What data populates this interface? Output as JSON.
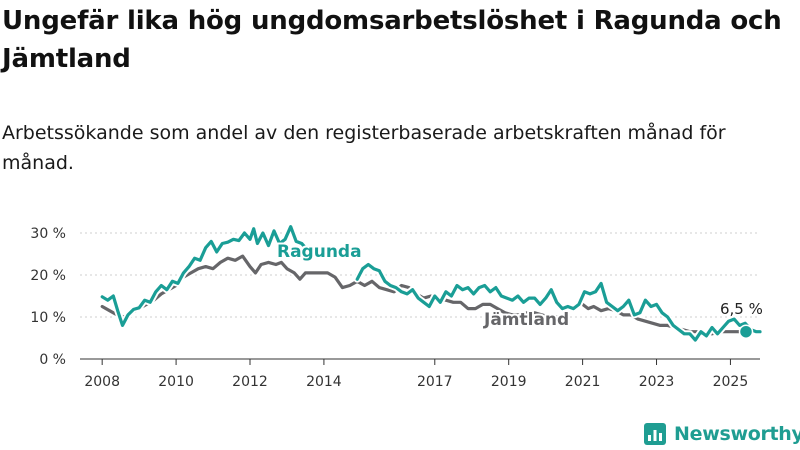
{
  "chart_data": {
    "type": "line",
    "title": "Ungefär lika hög ungdomsarbetslöshet i Ragunda och Jämtland",
    "subtitle": "Arbetssökande som andel av den registerbaserade arbetskraften månad för månad.",
    "xlabel": "",
    "ylabel": "",
    "ylim": [
      0,
      30
    ],
    "xlim": [
      2007.4,
      2025.8
    ],
    "y_ticks": [
      0,
      10,
      20,
      30
    ],
    "y_tick_labels": [
      "0 %",
      "10 %",
      "20 %",
      "30 %"
    ],
    "x_ticks": [
      2008,
      2010,
      2012,
      2014,
      2017,
      2019,
      2021,
      2023,
      2025
    ],
    "x_tick_labels": [
      "2008",
      "2010",
      "2012",
      "2014",
      "2017",
      "2019",
      "2021",
      "2023",
      "2025"
    ],
    "grid": true,
    "legend": "inline labels",
    "end_label": "6,5 %",
    "series": [
      {
        "name": "Ragunda",
        "color": "#1a9e96",
        "points": [
          [
            2008.0,
            14.8
          ],
          [
            2008.15,
            14.0
          ],
          [
            2008.3,
            15.0
          ],
          [
            2008.42,
            11.5
          ],
          [
            2008.55,
            8.0
          ],
          [
            2008.7,
            10.5
          ],
          [
            2008.85,
            11.8
          ],
          [
            2009.0,
            12.2
          ],
          [
            2009.15,
            14.0
          ],
          [
            2009.3,
            13.5
          ],
          [
            2009.45,
            16.0
          ],
          [
            2009.6,
            17.5
          ],
          [
            2009.75,
            16.5
          ],
          [
            2009.9,
            18.5
          ],
          [
            2010.05,
            18.0
          ],
          [
            2010.2,
            20.5
          ],
          [
            2010.35,
            22.0
          ],
          [
            2010.5,
            24.0
          ],
          [
            2010.65,
            23.5
          ],
          [
            2010.8,
            26.5
          ],
          [
            2010.95,
            28.0
          ],
          [
            2011.1,
            25.5
          ],
          [
            2011.25,
            27.5
          ],
          [
            2011.4,
            27.8
          ],
          [
            2011.55,
            28.5
          ],
          [
            2011.7,
            28.2
          ],
          [
            2011.85,
            30.0
          ],
          [
            2012.0,
            28.5
          ],
          [
            2012.1,
            31.0
          ],
          [
            2012.2,
            27.5
          ],
          [
            2012.35,
            30.0
          ],
          [
            2012.5,
            27.0
          ],
          [
            2012.65,
            30.5
          ],
          [
            2012.8,
            27.5
          ],
          [
            2012.95,
            28.5
          ],
          [
            2013.1,
            31.5
          ],
          [
            2013.25,
            28.0
          ],
          [
            2013.4,
            27.5
          ],
          [
            2013.55,
            26.0
          ],
          [
            2013.7,
            26.5
          ],
          [
            2013.85,
            25.0
          ]
        ]
      },
      {
        "name": "Ragunda",
        "color": "#1a9e96",
        "points": [
          [
            2014.9,
            19.0
          ],
          [
            2015.05,
            21.5
          ],
          [
            2015.2,
            22.5
          ],
          [
            2015.35,
            21.5
          ],
          [
            2015.5,
            21.0
          ],
          [
            2015.65,
            18.5
          ],
          [
            2015.8,
            17.5
          ],
          [
            2015.95,
            17.0
          ],
          [
            2016.1,
            16.0
          ],
          [
            2016.25,
            15.5
          ],
          [
            2016.4,
            16.5
          ],
          [
            2016.55,
            14.5
          ],
          [
            2016.7,
            13.5
          ],
          [
            2016.85,
            12.5
          ],
          [
            2017.0,
            15.0
          ],
          [
            2017.15,
            13.5
          ],
          [
            2017.3,
            16.0
          ],
          [
            2017.45,
            15.0
          ],
          [
            2017.6,
            17.5
          ],
          [
            2017.75,
            16.5
          ],
          [
            2017.9,
            17.0
          ],
          [
            2018.05,
            15.5
          ],
          [
            2018.2,
            17.0
          ],
          [
            2018.35,
            17.5
          ],
          [
            2018.5,
            16.0
          ],
          [
            2018.65,
            17.0
          ],
          [
            2018.8,
            15.0
          ],
          [
            2018.95,
            14.5
          ],
          [
            2019.1,
            14.0
          ],
          [
            2019.25,
            15.0
          ],
          [
            2019.4,
            13.5
          ],
          [
            2019.55,
            14.5
          ],
          [
            2019.7,
            14.5
          ],
          [
            2019.85,
            13.0
          ],
          [
            2020.0,
            14.5
          ],
          [
            2020.15,
            16.5
          ],
          [
            2020.3,
            13.5
          ],
          [
            2020.45,
            12.0
          ],
          [
            2020.6,
            12.5
          ],
          [
            2020.75,
            12.0
          ],
          [
            2020.9,
            13.0
          ],
          [
            2021.05,
            16.0
          ],
          [
            2021.2,
            15.5
          ],
          [
            2021.35,
            16.0
          ],
          [
            2021.5,
            18.0
          ],
          [
            2021.65,
            13.5
          ],
          [
            2021.8,
            12.5
          ],
          [
            2021.95,
            11.5
          ],
          [
            2022.1,
            12.5
          ],
          [
            2022.25,
            14.0
          ],
          [
            2022.4,
            10.5
          ],
          [
            2022.55,
            11.0
          ],
          [
            2022.7,
            14.0
          ],
          [
            2022.85,
            12.5
          ],
          [
            2023.0,
            13.0
          ],
          [
            2023.15,
            11.0
          ],
          [
            2023.3,
            10.0
          ],
          [
            2023.45,
            8.0
          ],
          [
            2023.6,
            7.0
          ],
          [
            2023.75,
            6.0
          ],
          [
            2023.9,
            6.0
          ],
          [
            2024.05,
            4.5
          ],
          [
            2024.2,
            6.5
          ],
          [
            2024.35,
            5.5
          ],
          [
            2024.5,
            7.5
          ],
          [
            2024.65,
            6.0
          ],
          [
            2024.8,
            7.5
          ],
          [
            2024.95,
            9.0
          ],
          [
            2025.1,
            9.5
          ],
          [
            2025.25,
            8.0
          ],
          [
            2025.4,
            8.5
          ],
          [
            2025.55,
            7.0
          ],
          [
            2025.7,
            6.5
          ],
          [
            2025.8,
            6.5
          ]
        ]
      },
      {
        "name": "Jämtland",
        "color": "#666669",
        "points": [
          [
            2008.0,
            12.5
          ],
          [
            2008.2,
            11.5
          ],
          [
            2008.4,
            10.5
          ],
          [
            2008.6,
            10.0
          ],
          [
            2008.8,
            11.0
          ],
          [
            2009.0,
            12.0
          ],
          [
            2009.2,
            13.0
          ],
          [
            2009.4,
            14.0
          ],
          [
            2009.6,
            15.5
          ],
          [
            2009.8,
            16.5
          ],
          [
            2010.0,
            17.5
          ],
          [
            2010.2,
            19.5
          ],
          [
            2010.4,
            20.5
          ],
          [
            2010.6,
            21.5
          ],
          [
            2010.8,
            22.0
          ],
          [
            2011.0,
            21.5
          ],
          [
            2011.2,
            23.0
          ],
          [
            2011.4,
            24.0
          ],
          [
            2011.6,
            23.5
          ],
          [
            2011.8,
            24.5
          ],
          [
            2012.0,
            22.0
          ],
          [
            2012.15,
            20.5
          ],
          [
            2012.3,
            22.5
          ],
          [
            2012.5,
            23.0
          ],
          [
            2012.7,
            22.5
          ],
          [
            2012.85,
            23.0
          ],
          [
            2013.0,
            21.5
          ],
          [
            2013.2,
            20.5
          ],
          [
            2013.35,
            19.0
          ],
          [
            2013.5,
            20.5
          ],
          [
            2013.7,
            20.5
          ],
          [
            2013.9,
            20.5
          ],
          [
            2014.1,
            20.5
          ],
          [
            2014.3,
            19.5
          ],
          [
            2014.5,
            17.0
          ],
          [
            2014.7,
            17.5
          ],
          [
            2014.9,
            18.5
          ],
          [
            2015.1,
            17.5
          ],
          [
            2015.3,
            18.5
          ],
          [
            2015.5,
            17.0
          ],
          [
            2015.7,
            16.5
          ],
          [
            2015.9,
            16.0
          ],
          [
            2016.1,
            17.5
          ],
          [
            2016.3,
            17.0
          ],
          [
            2016.5,
            15.5
          ],
          [
            2016.7,
            14.5
          ],
          [
            2016.9,
            15.0
          ],
          [
            2017.1,
            14.0
          ],
          [
            2017.3,
            14.0
          ],
          [
            2017.5,
            13.5
          ],
          [
            2017.7,
            13.5
          ],
          [
            2017.9,
            12.0
          ],
          [
            2018.1,
            12.0
          ],
          [
            2018.3,
            13.0
          ],
          [
            2018.5,
            13.0
          ],
          [
            2018.7,
            12.0
          ],
          [
            2018.9,
            11.0
          ],
          [
            2019.1,
            10.5
          ],
          [
            2019.3,
            10.5
          ],
          [
            2019.5,
            11.0
          ],
          [
            2019.7,
            11.0
          ],
          [
            2019.9,
            10.5
          ],
          [
            2020.1,
            10.0
          ],
          [
            2020.3,
            10.0
          ]
        ]
      },
      {
        "name": "Jämtland",
        "color": "#666669",
        "points": [
          [
            2021.0,
            13.0
          ],
          [
            2021.15,
            12.0
          ],
          [
            2021.3,
            12.5
          ],
          [
            2021.5,
            11.5
          ],
          [
            2021.7,
            12.0
          ],
          [
            2021.9,
            11.5
          ],
          [
            2022.1,
            10.5
          ],
          [
            2022.3,
            10.5
          ],
          [
            2022.5,
            9.5
          ],
          [
            2022.7,
            9.0
          ],
          [
            2022.9,
            8.5
          ],
          [
            2023.1,
            8.0
          ],
          [
            2023.3,
            8.0
          ],
          [
            2023.5,
            7.5
          ],
          [
            2023.7,
            7.0
          ],
          [
            2023.9,
            6.5
          ],
          [
            2024.1,
            6.5
          ],
          [
            2024.3,
            6.0
          ],
          [
            2024.5,
            6.0
          ],
          [
            2024.7,
            6.5
          ],
          [
            2024.9,
            6.5
          ],
          [
            2025.1,
            6.5
          ],
          [
            2025.3,
            6.5
          ],
          [
            2025.5,
            6.5
          ],
          [
            2025.7,
            6.5
          ],
          [
            2025.8,
            6.5
          ]
        ]
      }
    ]
  },
  "brand": {
    "name": "Newsworthy",
    "icon": "bar-chart-icon",
    "color": "#1f9d92"
  }
}
